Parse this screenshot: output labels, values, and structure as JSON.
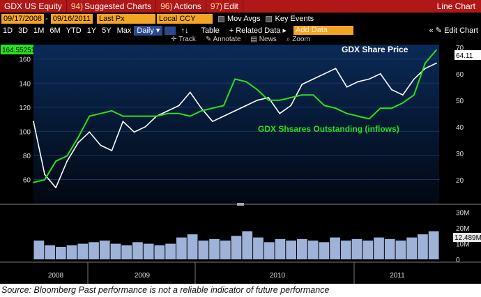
{
  "window": {
    "security": "GDX US Equity",
    "menu": [
      {
        "num": "94)",
        "label": "Suggested Charts"
      },
      {
        "num": "96)",
        "label": "Actions"
      },
      {
        "num": "97)",
        "label": "Edit"
      }
    ],
    "chart_type": "Line Chart"
  },
  "controls": {
    "start_date": "09/17/2008",
    "end_date": "09/16/2011",
    "field": "Last Px",
    "currency": "Local CCY",
    "mov_avgs": "Mov Avgs",
    "key_events": "Key Events"
  },
  "toolbar": {
    "periods": [
      "1D",
      "3D",
      "1M",
      "6M",
      "YTD",
      "1Y",
      "5Y",
      "Max"
    ],
    "frequency": "Daily",
    "table": "Table",
    "related_data": "Related Data",
    "add_data_placeholder": "Add Data",
    "edit_chart": "Edit Chart"
  },
  "tools": [
    "Track",
    "Annotate",
    "News",
    "Zoom"
  ],
  "price_tag": "164.55251",
  "last_price_tag": "64.11",
  "volume_tag": "12.489M",
  "colors": {
    "title_bar": "#b01818",
    "field_bg": "#f3a423",
    "plot_bg": "#06142b",
    "price_line": "#ffffff",
    "shares_line": "#27e21e",
    "volume_bars": "#9fb2d8"
  },
  "chart_data": [
    {
      "type": "line",
      "annotations": [
        "GDX Share Price",
        "GDX Shsares Outstanding (inflows)"
      ],
      "x_tick_labels": [
        "2008",
        "2009",
        "2010",
        "2011"
      ],
      "left_axis": {
        "ticks": [
          60,
          80,
          100,
          120,
          140,
          160
        ],
        "ylim": [
          40,
          172
        ]
      },
      "right_axis": {
        "ticks": [
          20,
          30,
          40,
          50,
          60,
          70
        ],
        "ylim": [
          11,
          71
        ]
      },
      "series": [
        {
          "name": "GDX Share Price",
          "axis": "right",
          "x": [
            "2008-09",
            "2008-10",
            "2008-11",
            "2008-12",
            "2009-01",
            "2009-02",
            "2009-03",
            "2009-04",
            "2009-05",
            "2009-06",
            "2009-07",
            "2009-08",
            "2009-09",
            "2009-10",
            "2009-11",
            "2009-12",
            "2010-01",
            "2010-02",
            "2010-03",
            "2010-04",
            "2010-05",
            "2010-06",
            "2010-07",
            "2010-08",
            "2010-09",
            "2010-10",
            "2010-11",
            "2010-12",
            "2011-01",
            "2011-02",
            "2011-03",
            "2011-04",
            "2011-05",
            "2011-06",
            "2011-07",
            "2011-08",
            "2011-09"
          ],
          "values": [
            42,
            22,
            17,
            27,
            34,
            38,
            33,
            31,
            42,
            38,
            40,
            44,
            46,
            48,
            53,
            47,
            42,
            44,
            46,
            48,
            50,
            51,
            45,
            48,
            56,
            58,
            60,
            62,
            55,
            57,
            58,
            60,
            54,
            52,
            58,
            62,
            64
          ]
        },
        {
          "name": "GDX Shsares Outstanding (inflows)",
          "axis": "right",
          "x": [
            "2008-09",
            "2008-10",
            "2008-11",
            "2008-12",
            "2009-01",
            "2009-02",
            "2009-03",
            "2009-04",
            "2009-05",
            "2009-06",
            "2009-07",
            "2009-08",
            "2009-09",
            "2009-10",
            "2009-11",
            "2009-12",
            "2010-01",
            "2010-02",
            "2010-03",
            "2010-04",
            "2010-05",
            "2010-06",
            "2010-07",
            "2010-08",
            "2010-09",
            "2010-10",
            "2010-11",
            "2010-12",
            "2011-01",
            "2011-02",
            "2011-03",
            "2011-04",
            "2011-05",
            "2011-06",
            "2011-07",
            "2011-08",
            "2011-09"
          ],
          "values": [
            19,
            20,
            27,
            29,
            36,
            44,
            45,
            46,
            44,
            44,
            44,
            44,
            45,
            45,
            44,
            46,
            47,
            48,
            58,
            57,
            54,
            50,
            50,
            51,
            52,
            52,
            48,
            47,
            45,
            44,
            43,
            47,
            47,
            49,
            52,
            64,
            69
          ]
        }
      ]
    },
    {
      "type": "bar",
      "name": "Volume",
      "ticks": [
        "0",
        "10M",
        "20M",
        "30M"
      ],
      "ylim": [
        0,
        33
      ],
      "x_tick_labels": [
        "2008",
        "2009",
        "2010",
        "2011"
      ],
      "values": [
        12,
        9,
        8,
        9,
        10,
        11,
        12,
        10,
        9,
        11,
        10,
        9,
        10,
        14,
        16,
        12,
        13,
        12,
        15,
        18,
        14,
        11,
        13,
        12,
        13,
        12,
        11,
        14,
        12,
        13,
        12,
        14,
        13,
        12,
        14,
        16,
        18
      ]
    }
  ],
  "caption": "Source: Bloomberg Past performance is not a reliable indicator of future performance"
}
